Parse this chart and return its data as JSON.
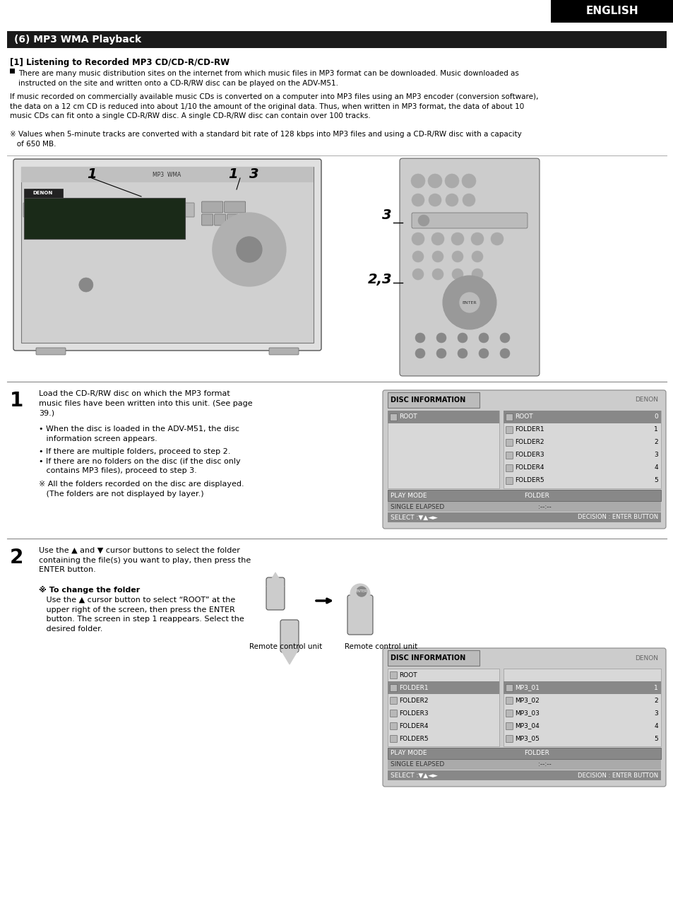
{
  "page_bg": "#ffffff",
  "header_bg": "#000000",
  "header_text": "ENGLISH",
  "header_text_color": "#ffffff",
  "section_bar_bg": "#1a1a1a",
  "section_bar_text": "(6) MP3 WMA Playback",
  "section_bar_text_color": "#ffffff",
  "subsection_title": "[1] Listening to Recorded MP3 CD/CD-R/CD-RW",
  "body_text_1": "There are many music distribution sites on the internet from which music files in MP3 format can be downloaded. Music downloaded as\ninstructed on the site and written onto a CD-R/RW disc can be played on the ADV-M51.",
  "body_text_2": "If music recorded on commercially available music CDs is converted on a computer into MP3 files using an MP3 encoder (conversion software),\nthe data on a 12 cm CD is reduced into about 1/10 the amount of the original data. Thus, when written in MP3 format, the data of about 10\nmusic CDs can fit onto a single CD-R/RW disc. A single CD-R/RW disc can contain over 100 tracks.",
  "body_text_3": "※ Values when 5-minute tracks are converted with a standard bit rate of 128 kbps into MP3 files and using a CD-R/RW disc with a capacity\n   of 650 MB.",
  "step1_num": "1",
  "step1_text_a": "Load the CD-R/RW disc on which the MP3 format\nmusic files have been written into this unit. (See page\n39.)",
  "step1_text_b": "• When the disc is loaded in the ADV-M51, the disc\n   information screen appears.",
  "step1_text_c": "• If there are multiple folders, proceed to step 2.\n• If there are no folders on the disc (if the disc only\n   contains MP3 files), proceed to step 3.",
  "step1_text_d": "※ All the folders recorded on the disc are displayed.\n   (The folders are not displayed by layer.)",
  "step2_num": "2",
  "step2_text": "Use the ▲ and ▼ cursor buttons to select the folder\ncontaining the file(s) you want to play, then press the\nENTER button.",
  "step2_note_title": "※ To change the folder",
  "step2_note_body": "   Use the ▲ cursor button to select “ROOT” at the\n   upper right of the screen, then press the ENTER\n   button. The screen in step 1 reappears. Select the\n   desired folder.",
  "remote_label": "Remote control unit",
  "disc_info_title": "DISC INFORMATION",
  "disc_info_brand": "DENON",
  "disc_info_play_mode": "PLAY MODE",
  "disc_info_play_val": "FOLDER",
  "disc_info_elapsed": "SINGLE ELAPSED",
  "disc_info_elapsed_val": ":--:--",
  "disc_info_select": "SELECT :▼▲◄►",
  "disc_info_decision": "DECISION : ENTER BUTTON",
  "text_color": "#000000",
  "medium_gray": "#888888",
  "dark_gray": "#444444"
}
